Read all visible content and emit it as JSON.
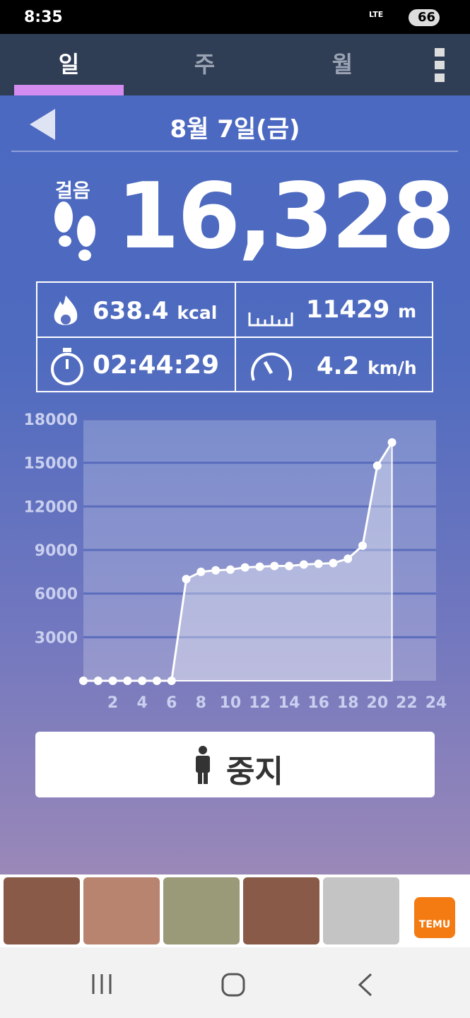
{
  "status_bar": {
    "time": "8:35",
    "network": "LTE",
    "battery": "66"
  },
  "tabs": [
    "일",
    "주",
    "월"
  ],
  "date": "8월 7일(금)",
  "steps": {
    "label": "걸음",
    "value": "16,328"
  },
  "stats": {
    "calories": "638.4",
    "calories_unit": "kcal",
    "distance": "11429",
    "distance_unit": "m",
    "duration": "02:44:29",
    "speed": "4.2",
    "speed_unit": "km/h"
  },
  "chart_data": {
    "type": "line",
    "x": [
      0,
      1,
      2,
      3,
      4,
      5,
      6,
      7,
      8,
      9,
      10,
      11,
      12,
      13,
      14,
      15,
      16,
      17,
      18,
      19,
      20,
      21
    ],
    "values": [
      0,
      0,
      0,
      0,
      0,
      0,
      0,
      7000,
      7500,
      7600,
      7650,
      7800,
      7850,
      7900,
      7900,
      8000,
      8050,
      8100,
      8400,
      9300,
      14800,
      16400
    ],
    "color": "#ffffff",
    "xlim": [
      0,
      24
    ],
    "ylim": [
      0,
      18000
    ],
    "xticks": [
      2,
      4,
      6,
      8,
      10,
      12,
      14,
      16,
      18,
      20,
      22,
      24
    ],
    "yticks": [
      3000,
      6000,
      9000,
      12000,
      15000,
      18000
    ],
    "grid": true
  },
  "stop_button": "중지",
  "ad": {
    "brand": "TEMU"
  }
}
